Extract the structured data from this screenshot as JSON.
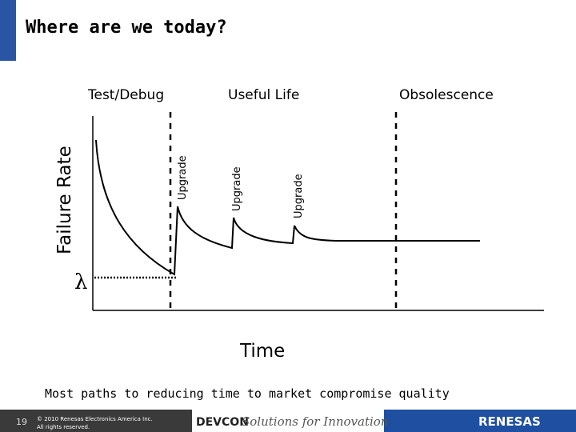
{
  "header": {
    "title": "Where are we today?"
  },
  "diagram": {
    "phases": [
      "Test/Debug",
      "Useful Life",
      "Obsolescence"
    ],
    "y_axis_label": "Failure Rate",
    "x_axis_label": "Time",
    "event_labels": [
      "Upgrade",
      "Upgrade",
      "Upgrade"
    ],
    "baseline_label": "λ"
  },
  "caption": "Most paths to reducing time to market compromise quality",
  "footer": {
    "page_number": "19",
    "copyright": "© 2010 Renesas Electronics America Inc.",
    "rights": "All rights reserved.",
    "event_name": "DEVCON",
    "tagline": "Solutions for Innovation",
    "company": "RENESAS"
  }
}
